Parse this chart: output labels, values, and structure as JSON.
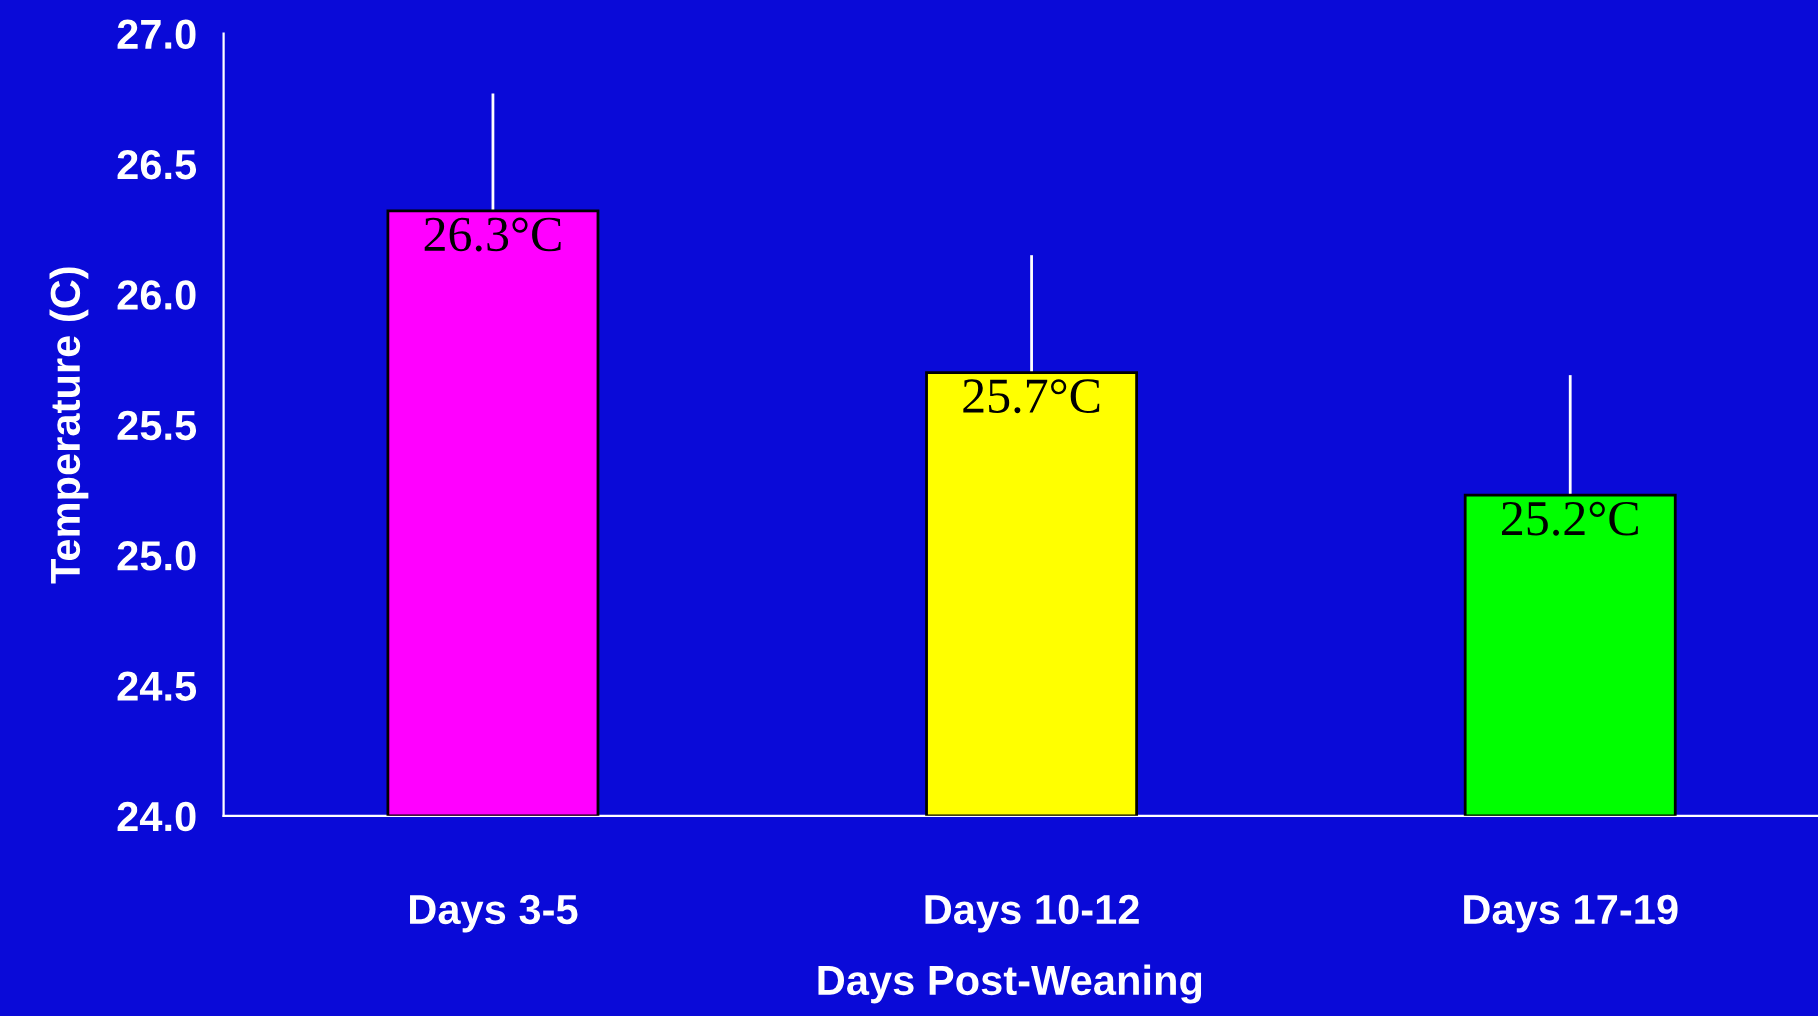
{
  "chart_data": {
    "type": "bar",
    "xlabel": "Days Post-Weaning",
    "ylabel": "Temperature (C)",
    "categories": [
      "Days 3-5",
      "Days 10-12",
      "Days 17-19"
    ],
    "values": [
      26.32,
      25.7,
      25.23
    ],
    "colors": [
      "#ff00ff",
      "#ffff00",
      "#00ff00"
    ],
    "errors": [
      [
        26.32,
        26.77
      ],
      [
        25.7,
        26.15
      ],
      [
        25.23,
        25.69
      ]
    ],
    "value_labels": [
      "26.3°C",
      "25.7°C",
      "25.2°C"
    ],
    "ylim": [
      24.0,
      27.0
    ],
    "yticks": [
      {
        "value": 24.0,
        "label": "24.0"
      },
      {
        "value": 24.5,
        "label": "24.5"
      },
      {
        "value": 25.0,
        "label": "25.0"
      },
      {
        "value": 25.5,
        "label": "25.5"
      },
      {
        "value": 26.0,
        "label": "26.0"
      },
      {
        "value": 26.5,
        "label": "26.5"
      },
      {
        "value": 27.0,
        "label": "27.0"
      }
    ],
    "grid": false,
    "legend": false
  }
}
